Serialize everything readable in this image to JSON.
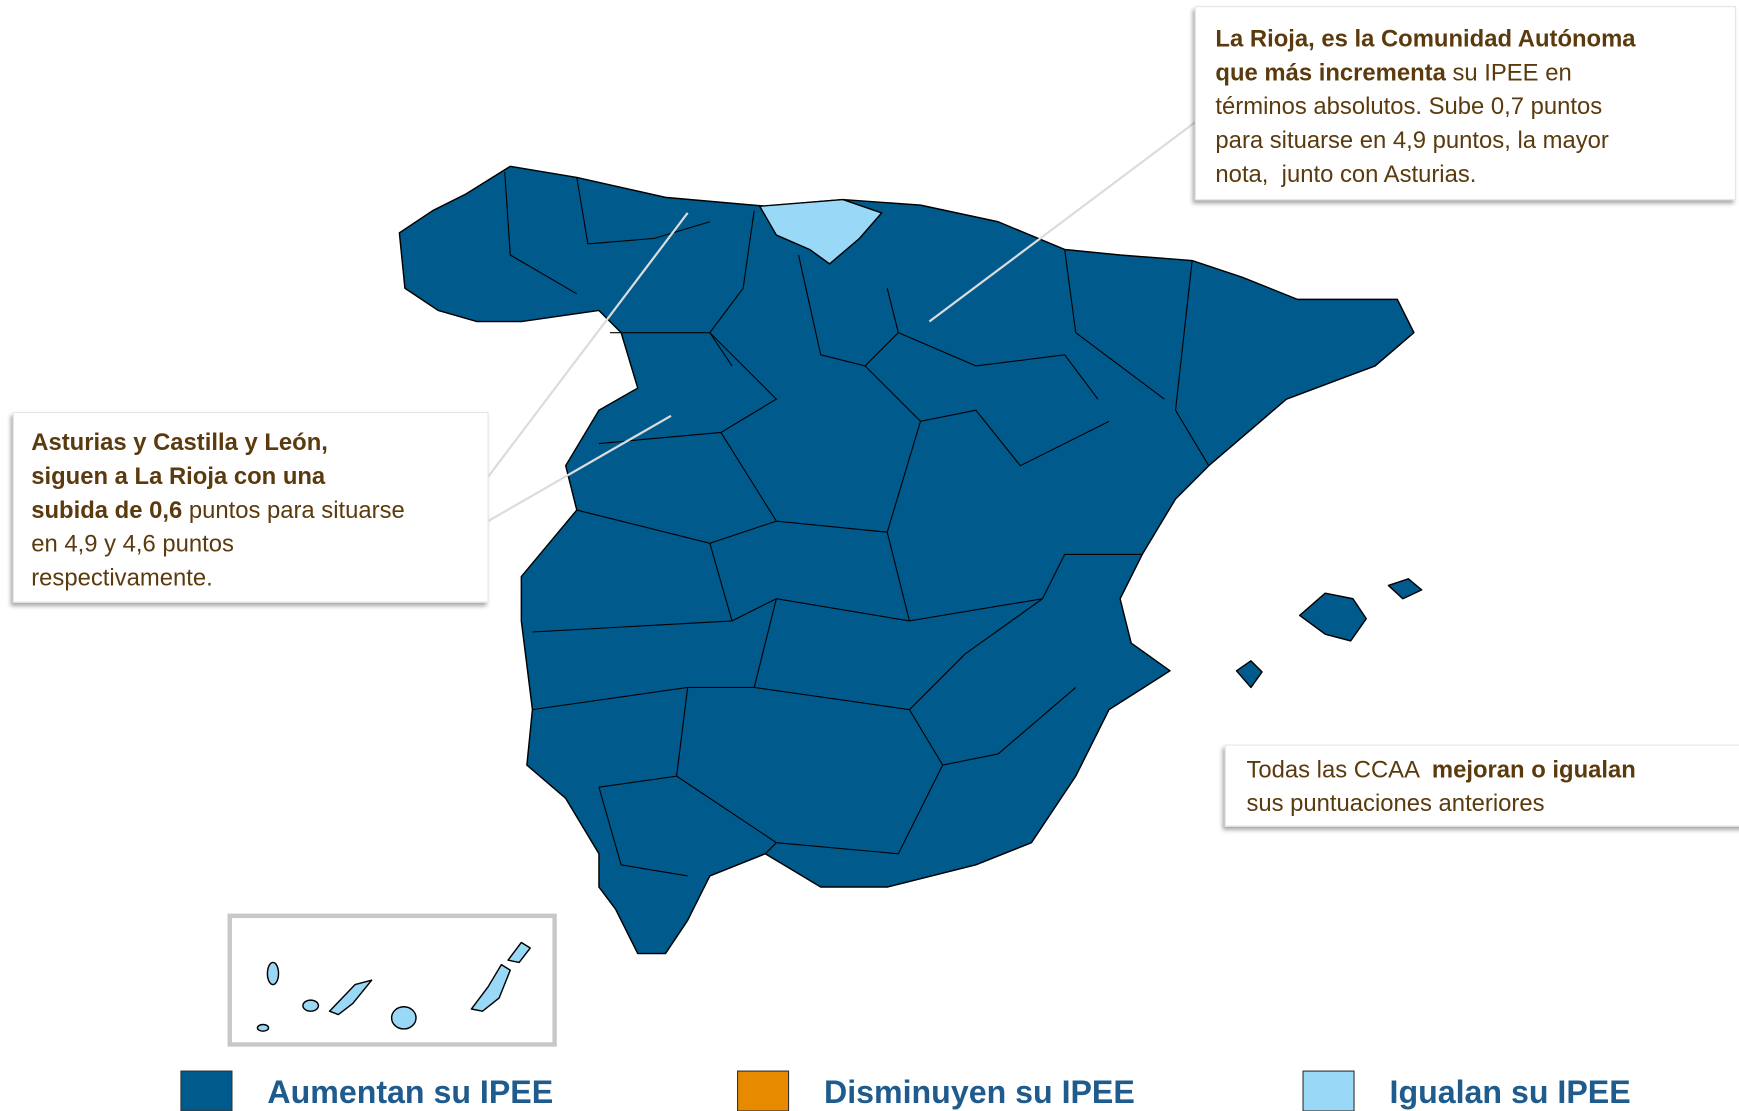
{
  "callouts": [
    {
      "lines": [
        [
          {
            "text": "La Rioja, es la Comunidad Autónoma",
            "bold": true
          }
        ],
        [
          {
            "text": "que más incrementa",
            "bold": true
          },
          {
            "text": " su IPEE en",
            "bold": false
          }
        ],
        [
          {
            "text": "términos absolutos. Sube 0,7 puntos",
            "bold": false
          }
        ],
        [
          {
            "text": "para situarse en 4,9 puntos, la mayor",
            "bold": false
          }
        ],
        [
          {
            "text": "nota,  junto con Asturias.",
            "bold": false
          }
        ]
      ]
    },
    {
      "lines": [
        [
          {
            "text": "Asturias y Castilla y León,",
            "bold": true
          }
        ],
        [
          {
            "text": "siguen a La Rioja con una",
            "bold": true
          }
        ],
        [
          {
            "text": "subida de 0,6",
            "bold": true
          },
          {
            "text": " puntos para situarse",
            "bold": false
          }
        ],
        [
          {
            "text": "en 4,9 y 4,6 puntos",
            "bold": false
          }
        ],
        [
          {
            "text": "respectivamente.",
            "bold": false
          }
        ]
      ]
    },
    {
      "lines": [
        [
          {
            "text": "Todas las CCAA  ",
            "bold": false
          },
          {
            "text": "mejoran o igualan",
            "bold": true
          }
        ],
        [
          {
            "text": "sus puntuaciones anteriores",
            "bold": false
          }
        ]
      ]
    }
  ],
  "legend": [
    {
      "name": "Aumentan su IPEE",
      "color": "#005a8c"
    },
    {
      "name": "Disminuyen su IPEE",
      "color": "#e88a00"
    },
    {
      "name": "Igualan su IPEE",
      "color": "#99d9f7"
    }
  ]
}
